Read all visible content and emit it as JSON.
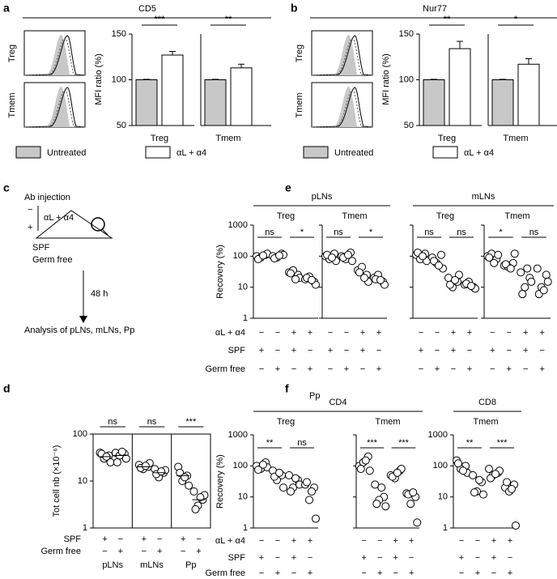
{
  "diagram": {
    "panel": "c",
    "title": "Ab injection",
    "minus": "−",
    "plus": "+",
    "treatment": "αL + α4",
    "mouse_labels": [
      "SPF",
      "Germ free"
    ],
    "time": "48 h",
    "analysis": "Analysis of pLNs, mLNs, Pp"
  },
  "chart_data": [
    {
      "type": "bar",
      "panel": "a",
      "title": "CD5",
      "histogram_labels": [
        "Treg",
        "Tmem"
      ],
      "ylabel": "MFI ratio (%)",
      "ylim": [
        50,
        150
      ],
      "yticks": [
        50,
        100,
        150
      ],
      "categories": [
        "Treg",
        "Tmem"
      ],
      "series": [
        {
          "name": "Untreated",
          "color": "#c8c8c8",
          "values": [
            100,
            100
          ],
          "errors": [
            0.5,
            0.5
          ]
        },
        {
          "name": "αL + α4",
          "color": "#ffffff",
          "values": [
            127,
            113
          ],
          "errors": [
            4,
            4
          ]
        }
      ],
      "significance": [
        "***",
        "**"
      ]
    },
    {
      "type": "bar",
      "panel": "b",
      "title": "Nur77",
      "histogram_labels": [
        "Treg",
        "Tmem"
      ],
      "ylabel": "MFI ratio (%)",
      "ylim": [
        50,
        150
      ],
      "yticks": [
        50,
        100,
        150
      ],
      "categories": [
        "Treg",
        "Tmem"
      ],
      "series": [
        {
          "name": "Untreated",
          "color": "#c8c8c8",
          "values": [
            100,
            100
          ],
          "errors": [
            0.5,
            0.5
          ]
        },
        {
          "name": "αL + α4",
          "color": "#ffffff",
          "values": [
            134,
            117
          ],
          "errors": [
            8,
            6
          ]
        }
      ],
      "significance": [
        "**",
        "*"
      ]
    },
    {
      "type": "dot",
      "panel": "e",
      "ylabel": "Recovery (%)",
      "log": true,
      "ylim": [
        1,
        1000
      ],
      "yticks": [
        1,
        10,
        100,
        1000
      ],
      "conditions": [
        {
          "name": "αL + α4",
          "signs": [
            "−",
            "−",
            "+",
            "+"
          ]
        },
        {
          "name": "SPF",
          "signs": [
            "+",
            "−",
            "+",
            "−"
          ]
        },
        {
          "name": "Germ free",
          "signs": [
            "−",
            "+",
            "−",
            "+"
          ]
        }
      ],
      "groups": [
        {
          "name": "pLNs",
          "panels": [
            {
              "name": "Treg",
              "columns": [
                [
                  100,
                  110,
                  90,
                  120,
                  80,
                  105
                ],
                [
                  100,
                  120,
                  90,
                  110,
                  85,
                  105
                ],
                [
                  30,
                  25,
                  35,
                  20,
                  28,
                  18
                ],
                [
                  18,
                  15,
                  22,
                  12,
                  20,
                  17
                ]
              ],
              "significance": [
                "ns",
                "*"
              ]
            },
            {
              "name": "Tmem",
              "columns": [
                [
                  100,
                  120,
                  80,
                  70,
                  110,
                  90
                ],
                [
                  100,
                  130,
                  80,
                  70,
                  90,
                  110
                ],
                [
                  35,
                  25,
                  45,
                  15,
                  30,
                  20
                ],
                [
                  20,
                  15,
                  25,
                  12,
                  18,
                  17
                ]
              ],
              "significance": [
                "ns",
                "*"
              ]
            }
          ]
        },
        {
          "name": "mLNs",
          "panels": [
            {
              "name": "Treg",
              "columns": [
                [
                  110,
                  120,
                  80,
                  70,
                  130,
                  100
                ],
                [
                  90,
                  110,
                  60,
                  40,
                  70,
                  50
                ],
                [
                  20,
                  15,
                  10,
                  25,
                  12,
                  17
                ],
                [
                  12,
                  10,
                  15,
                  9,
                  13,
                  11
                ]
              ],
              "significance": [
                "ns",
                "ns"
              ]
            },
            {
              "name": "Tmem",
              "columns": [
                [
                  100,
                  80,
                  120,
                  110,
                  90,
                  60
                ],
                [
                  50,
                  60,
                  45,
                  120,
                  55,
                  40
                ],
                [
                  30,
                  20,
                  10,
                  15,
                  6,
                  40
                ],
                [
                  40,
                  25,
                  10,
                  15,
                  6,
                  8
                ]
              ],
              "significance": [
                "*",
                "ns"
              ]
            }
          ]
        }
      ]
    },
    {
      "type": "strip",
      "panel": "d",
      "ylabel": "Tot cell nb (×10⁻⁶)",
      "log": true,
      "ylim": [
        1,
        100
      ],
      "yticks": [
        1,
        10,
        100
      ],
      "conditions": [
        {
          "name": "SPF",
          "signs": [
            "+",
            "−"
          ]
        },
        {
          "name": "Germ free",
          "signs": [
            "−",
            "+"
          ]
        }
      ],
      "groups": [
        {
          "name": "pLNs",
          "columns": [
            [
              40,
              35,
              30,
              25,
              38,
              33
            ],
            [
              40,
              38,
              35,
              30,
              25,
              42
            ]
          ],
          "means": [
            33,
            35
          ],
          "significance": "ns"
        },
        {
          "name": "mLNs",
          "columns": [
            [
              22,
              20,
              18,
              24,
              19,
              21
            ],
            [
              18,
              15,
              12,
              17,
              14,
              16
            ]
          ],
          "means": [
            20,
            15
          ],
          "significance": "ns"
        },
        {
          "name": "Pp",
          "columns": [
            [
              20,
              13,
              10,
              8,
              15,
              12
            ],
            [
              6,
              4,
              3,
              5,
              2.5,
              4.5
            ]
          ],
          "means": [
            13,
            4
          ],
          "significance": "***"
        }
      ]
    },
    {
      "type": "dot",
      "panel": "f",
      "subtitle": "Pp",
      "ylabel": "Recovery (%)",
      "log": true,
      "ylim": [
        1,
        1000
      ],
      "yticks": [
        1,
        10,
        100,
        1000
      ],
      "conditions": [
        {
          "name": "αL + α4",
          "signs": [
            "−",
            "−",
            "+",
            "+"
          ]
        },
        {
          "name": "SPF",
          "signs": [
            "+",
            "−",
            "+",
            "−"
          ]
        },
        {
          "name": "Germ free",
          "signs": [
            "−",
            "+",
            "−",
            "+"
          ]
        }
      ],
      "groups": [
        {
          "name": "CD4",
          "panels": [
            {
              "name": "Treg",
              "columns": [
                [
                  100,
                  130,
                  80,
                  90,
                  75,
                  110
                ],
                [
                  70,
                  50,
                  35,
                  20,
                  45,
                  60
                ],
                [
                  50,
                  35,
                  20,
                  25,
                  15,
                  40
                ],
                [
                  25,
                  20,
                  8,
                  2,
                  30,
                  15
                ]
              ],
              "significance": [
                "**",
                "ns"
              ]
            },
            {
              "name": "Tmem",
              "columns": [
                [
                  100,
                  200,
                  130,
                  70,
                  80,
                  150
                ],
                [
                  25,
                  10,
                  8,
                  5,
                  6,
                  20
                ],
                [
                  50,
                  70,
                  40,
                  80,
                  45,
                  60
                ],
                [
                  13,
                  10,
                  6,
                  1.5,
                  12,
                  14
                ]
              ],
              "significance": [
                "***",
                "***"
              ]
            }
          ]
        },
        {
          "name": "CD8",
          "panels": [
            {
              "name": "Tmem",
              "columns": [
                [
                  150,
                  100,
                  80,
                  60,
                  120,
                  70
                ],
                [
                  50,
                  30,
                  15,
                  12,
                  14,
                  35
                ],
                [
                  80,
                  60,
                  50,
                  70,
                  40,
                  55
                ],
                [
                  20,
                  25,
                  15,
                  1.2,
                  30,
                  18
                ]
              ],
              "significance": [
                "**",
                "***"
              ]
            }
          ]
        }
      ]
    }
  ]
}
